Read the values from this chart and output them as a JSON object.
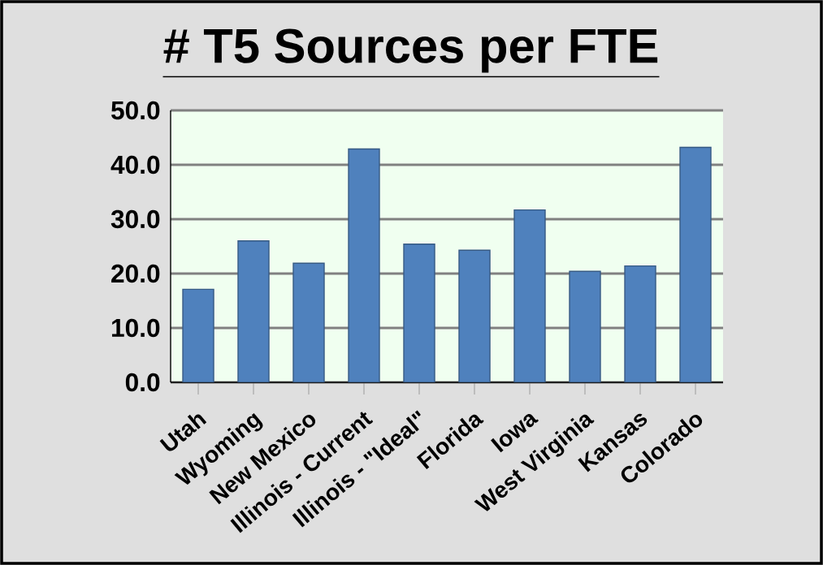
{
  "chart_data": {
    "type": "bar",
    "title": "# T5 Sources per FTE",
    "categories": [
      "Utah",
      "Wyoming",
      "New Mexico",
      "Illinois - Current",
      "Illinois - \"Ideal\"",
      "Florida",
      "Iowa",
      "West Virginia",
      "Kansas",
      "Colorado"
    ],
    "values": [
      17.1,
      26.0,
      21.9,
      42.9,
      25.4,
      24.3,
      31.7,
      20.4,
      21.4,
      43.2
    ],
    "color": "#4f81bd",
    "ylim": [
      0,
      50
    ],
    "yticks": [
      {
        "value": 0,
        "label": "0.0"
      },
      {
        "value": 10,
        "label": "10.0"
      },
      {
        "value": 20,
        "label": "20.0"
      },
      {
        "value": 30,
        "label": "30.0"
      },
      {
        "value": 40,
        "label": "40.0"
      },
      {
        "value": 50,
        "label": "50.0"
      }
    ],
    "grid": "y"
  }
}
